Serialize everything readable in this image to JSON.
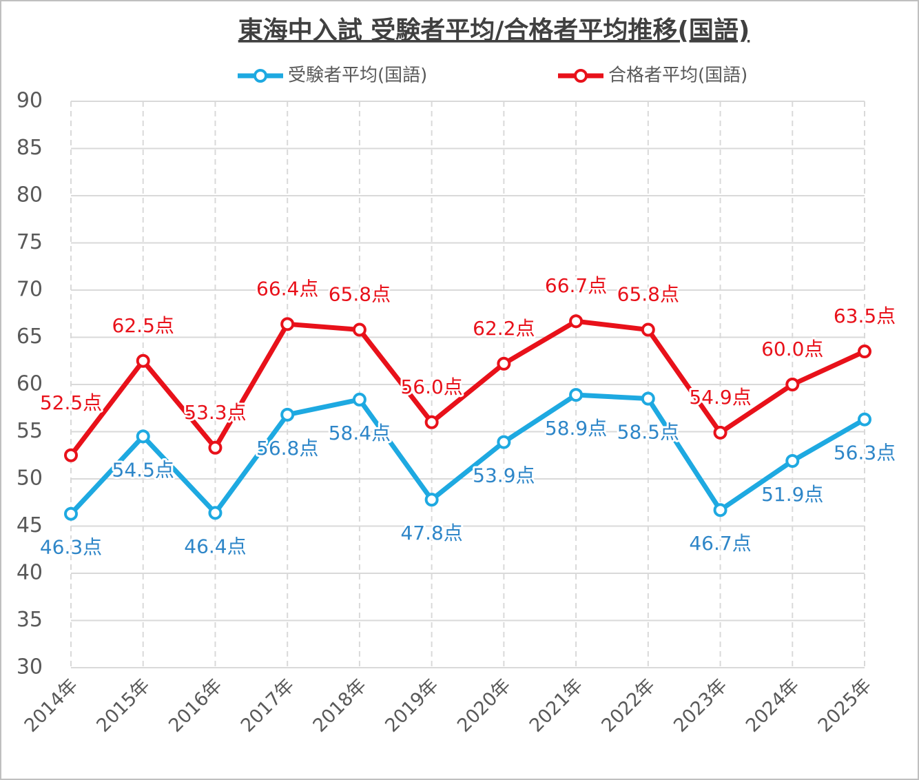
{
  "chart_data": {
    "type": "line",
    "title": "東海中入試 受験者平均/合格者平均推移(国語)",
    "categories": [
      "2014年",
      "2015年",
      "2016年",
      "2017年",
      "2018年",
      "2019年",
      "2020年",
      "2021年",
      "2022年",
      "2023年",
      "2024年",
      "2025年"
    ],
    "series": [
      {
        "name": "受験者平均(国語)",
        "color": "#1ea9e1",
        "values": [
          46.3,
          54.5,
          46.4,
          56.8,
          58.4,
          47.8,
          53.9,
          58.9,
          58.5,
          46.7,
          51.9,
          56.3
        ],
        "value_labels": [
          "46.3点",
          "54.5点",
          "46.4点",
          "56.8点",
          "58.4点",
          "47.8点",
          "53.9点",
          "58.9点",
          "58.5点",
          "46.7点",
          "51.9点",
          "56.3点"
        ]
      },
      {
        "name": "合格者平均(国語)",
        "color": "#e8111a",
        "values": [
          52.5,
          62.5,
          53.3,
          66.4,
          65.8,
          56.0,
          62.2,
          66.7,
          65.8,
          54.9,
          60.0,
          63.5
        ],
        "value_labels": [
          "52.5点",
          "62.5点",
          "53.3点",
          "66.4点",
          "65.8点",
          "56.0点",
          "62.2点",
          "66.7点",
          "65.8点",
          "54.9点",
          "60.0点",
          "63.5点"
        ]
      }
    ],
    "ylim": [
      30,
      90
    ],
    "yticks": [
      30,
      35,
      40,
      45,
      50,
      55,
      60,
      65,
      70,
      75,
      80,
      85,
      90
    ],
    "grid": true,
    "legend": "top"
  }
}
